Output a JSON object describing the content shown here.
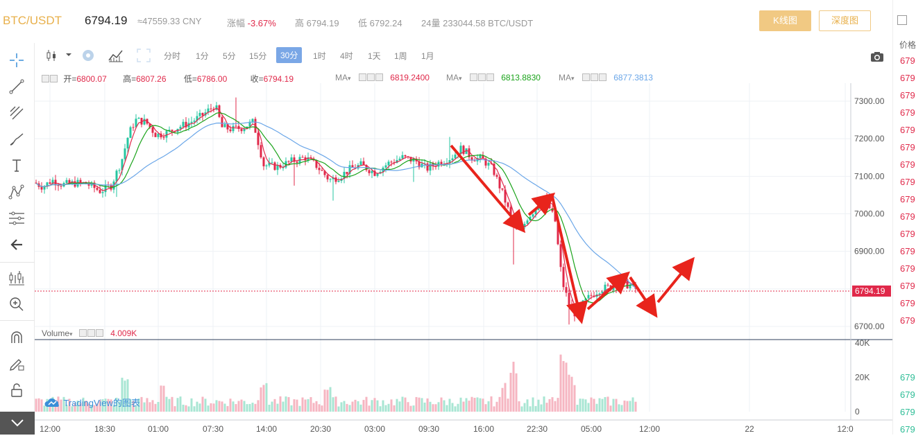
{
  "header": {
    "pair": "BTC/USDT",
    "last_price": "6794.19",
    "cny": "≈47559.33 CNY",
    "change_label": "涨幅",
    "change_value": "-3.67%",
    "high_label": "高",
    "high_value": "6794.19",
    "low_label": "低",
    "low_value": "6792.24",
    "vol_label": "24量",
    "vol_value": "233044.58 BTC/USDT",
    "kline_button": "K线图",
    "depth_button": "深度图"
  },
  "intervals": [
    "分时",
    "1分",
    "5分",
    "15分",
    "30分",
    "1时",
    "4时",
    "1天",
    "1周",
    "1月"
  ],
  "active_interval": "30分",
  "ohlc": {
    "open_label": "开=",
    "open": "6800.07",
    "high_label": "高=",
    "high": "6807.26",
    "low_label": "低=",
    "low": "6786.00",
    "close_label": "收=",
    "close": "6794.19"
  },
  "ma": [
    {
      "label": "MA",
      "value": "6819.2400",
      "color": "#e0294a"
    },
    {
      "label": "MA",
      "value": "6813.8830",
      "color": "#1aa31a"
    },
    {
      "label": "MA",
      "value": "6877.3813",
      "color": "#6aa6e8"
    }
  ],
  "volume_legend": {
    "label": "Volume",
    "value": "4.009K"
  },
  "price_axis": [
    "7300.00",
    "7200.00",
    "7100.00",
    "7000.00",
    "6900.00",
    "6800.00",
    "6700.00"
  ],
  "current_price_tag": "6794.19",
  "volume_axis": [
    "40K",
    "20K",
    "0"
  ],
  "time_axis": [
    "12:00",
    "18:30",
    "01:00",
    "07:30",
    "14:00",
    "20:30",
    "03:00",
    "09:30",
    "16:00",
    "22:30",
    "05:00",
    "12:00",
    "22",
    "12:0"
  ],
  "watermark": "TradingView的图表",
  "right_panel": {
    "title": "价格",
    "rows_red": [
      "679",
      "679",
      "679",
      "679",
      "679",
      "679",
      "679",
      "679",
      "679",
      "679",
      "679",
      "679",
      "679",
      "679",
      "679",
      "679"
    ],
    "rows_green": [
      "679",
      "679",
      "679",
      "679"
    ]
  },
  "colors": {
    "up": "#26c6a0",
    "down": "#e0294a",
    "accent": "#f1c983",
    "ma1": "#e0294a",
    "ma2": "#1aa31a",
    "ma3": "#6aa6e8"
  },
  "tools": [
    "crosshair-icon",
    "trendline-icon",
    "fib-icon",
    "brush-icon",
    "text-icon",
    "pattern-icon",
    "measure-icon",
    "back-arrow-icon",
    "chart-type-icon",
    "zoom-in-icon",
    "magnet-icon",
    "pencil-lock-icon",
    "unlock-icon",
    "chevron-down-icon"
  ]
}
